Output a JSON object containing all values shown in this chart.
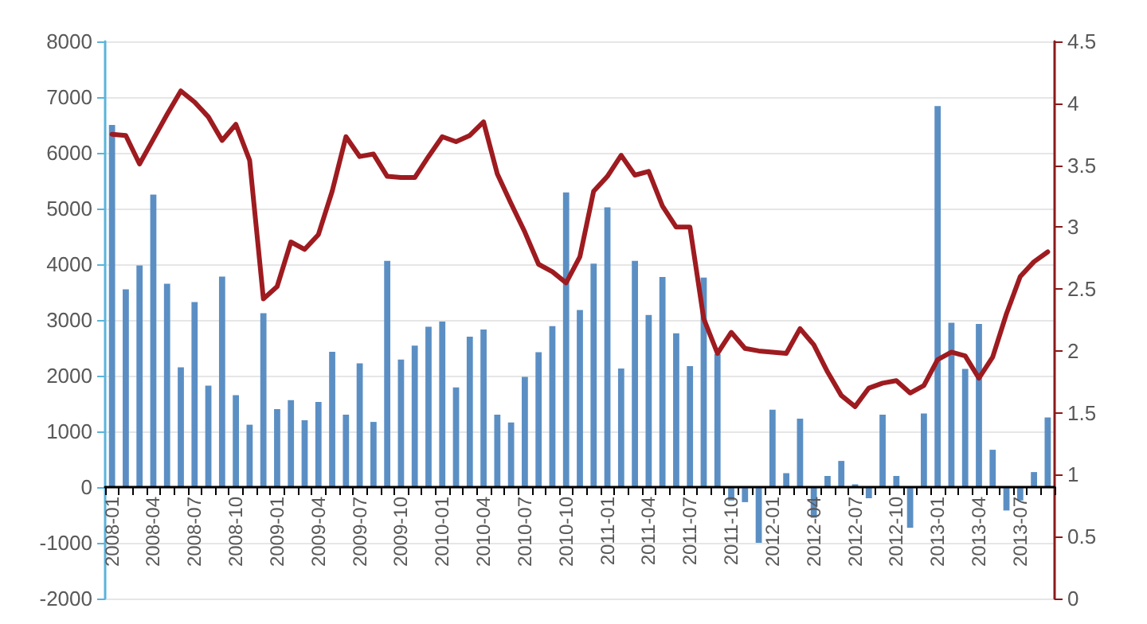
{
  "chart_data": {
    "type": "bar",
    "categories": [
      "2008-01",
      null,
      null,
      "2008-04",
      null,
      null,
      "2008-07",
      null,
      null,
      "2008-10",
      null,
      null,
      "2009-01",
      null,
      null,
      "2009-04",
      null,
      null,
      "2009-07",
      null,
      null,
      "2009-10",
      null,
      null,
      "2010-01",
      null,
      null,
      "2010-04",
      null,
      null,
      "2010-07",
      null,
      null,
      "2010-10",
      null,
      null,
      "2011-01",
      null,
      null,
      "2011-04",
      null,
      null,
      "2011-07",
      null,
      null,
      "2011-10",
      null,
      null,
      "2012-01",
      null,
      null,
      "2012-04",
      null,
      null,
      "2012-07",
      null,
      null,
      "2012-10",
      null,
      null,
      "2013-01",
      null,
      null,
      "2013-04",
      null,
      null,
      "2013-07",
      null,
      null
    ],
    "series": [
      {
        "color": "#5b8fc4",
        "values": [
          6500,
          3550,
          3980,
          5250,
          3650,
          2150,
          3320,
          1820,
          3780,
          1650,
          1120,
          3120,
          1400,
          1560,
          1200,
          1530,
          2430,
          1300,
          2220,
          1170,
          4060,
          2290,
          2540,
          2880,
          2970,
          1790,
          2700,
          2830,
          1300,
          1160,
          1980,
          2420,
          2890,
          5290,
          3180,
          4010,
          5020,
          2130,
          4060,
          3090,
          3770,
          2760,
          2170,
          3760,
          2390,
          -240,
          -270,
          -1000,
          1390,
          250,
          1230,
          -550,
          200,
          470,
          50,
          -200,
          1300,
          200,
          -730,
          1320,
          6840,
          2950,
          2120,
          2930,
          670,
          -420,
          -240,
          270,
          1250
        ]
      },
      {
        "type": "line",
        "axis": "y2",
        "color": "#9e1b20",
        "values": [
          3.75,
          3.74,
          3.51,
          3.71,
          3.91,
          4.1,
          4.01,
          3.89,
          3.7,
          3.83,
          3.54,
          2.42,
          2.52,
          2.88,
          2.82,
          2.94,
          3.29,
          3.73,
          3.57,
          3.59,
          3.41,
          3.4,
          3.4,
          3.57,
          3.73,
          3.69,
          3.74,
          3.85,
          3.43,
          3.19,
          2.96,
          2.7,
          2.64,
          2.55,
          2.76,
          3.29,
          3.41,
          3.58,
          3.42,
          3.45,
          3.17,
          3.0,
          3.0,
          2.26,
          1.98,
          2.15,
          2.02,
          2.0,
          1.99,
          1.98,
          2.18,
          2.05,
          1.83,
          1.64,
          1.55,
          1.7,
          1.74,
          1.76,
          1.66,
          1.72,
          1.93,
          1.99,
          1.96,
          1.78,
          1.95,
          2.3,
          2.6,
          2.72,
          2.8
        ]
      }
    ],
    "ylim": [
      -2000,
      8000
    ],
    "yticks": [
      -2000,
      -1000,
      0,
      1000,
      2000,
      3000,
      4000,
      5000,
      6000,
      7000,
      8000
    ],
    "y2lim": [
      0,
      4.5
    ],
    "y2ticks": [
      0,
      0.5,
      1,
      1.5,
      2,
      2.5,
      3,
      3.5,
      4,
      4.5
    ],
    "grid": "y",
    "marker": "none",
    "line_style": "solid"
  }
}
